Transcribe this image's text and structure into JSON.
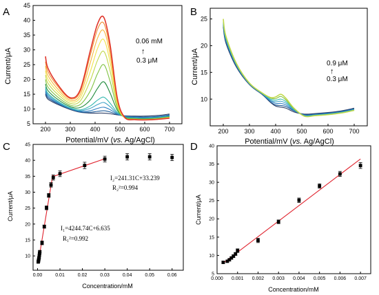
{
  "chart_data": [
    {
      "panel": "A",
      "type": "line",
      "xlabel_main": "Potential/mV (",
      "xlabel_italic": "vs.",
      "xlabel_tail": " Ag/AgCl)",
      "ylabel": "Current/μA",
      "xlim": [
        150,
        750
      ],
      "ylim": [
        5,
        45
      ],
      "xticks": [
        "200",
        "300",
        "400",
        "500",
        "600",
        "700"
      ],
      "yticks": [
        "5",
        "10",
        "15",
        "20",
        "25",
        "30",
        "35",
        "40",
        "45"
      ],
      "legend": {
        "top": "0.06 mM",
        "arrow": "↑",
        "bottom": "0.3 μM",
        "placement": "right"
      },
      "curve_x": [
        200,
        210,
        250,
        300,
        340,
        380,
        410,
        435,
        460,
        490,
        520,
        560,
        600,
        650,
        700
      ],
      "series": [
        {
          "color": "#2c3e66",
          "values": [
            15.0,
            13.3,
            11.5,
            9.8,
            8.9,
            8.6,
            8.6,
            8.6,
            8.4,
            8.0,
            7.7,
            7.6,
            7.6,
            7.8,
            8.3
          ]
        },
        {
          "color": "#1f5c99",
          "values": [
            15.6,
            13.8,
            11.8,
            10.0,
            9.0,
            8.9,
            9.2,
            9.4,
            9.0,
            8.1,
            7.6,
            7.4,
            7.3,
            7.5,
            8.0
          ]
        },
        {
          "color": "#2d7fc1",
          "values": [
            16.2,
            14.3,
            12.0,
            10.1,
            9.2,
            9.4,
            10.2,
            10.6,
            9.8,
            8.3,
            7.5,
            7.2,
            7.1,
            7.3,
            7.8
          ]
        },
        {
          "color": "#3fa4c8",
          "values": [
            16.8,
            14.8,
            12.3,
            10.2,
            9.4,
            10.2,
            11.5,
            12.2,
            10.8,
            8.5,
            7.4,
            7.0,
            6.9,
            7.2,
            7.6
          ]
        },
        {
          "color": "#35b8b0",
          "values": [
            17.4,
            15.3,
            12.6,
            10.4,
            9.7,
            11.0,
            13.0,
            14.0,
            12.0,
            8.8,
            7.3,
            6.9,
            6.8,
            7.0,
            7.5
          ]
        },
        {
          "color": "#1e8a3a",
          "values": [
            18.5,
            16.2,
            13.2,
            10.8,
            10.5,
            13.0,
            17.0,
            19.2,
            15.5,
            9.5,
            7.2,
            6.8,
            6.7,
            6.9,
            7.4
          ]
        },
        {
          "color": "#7fc241",
          "values": [
            20.0,
            17.4,
            14.0,
            11.3,
            11.5,
            16.0,
            22.0,
            25.0,
            19.5,
            10.2,
            7.1,
            6.7,
            6.6,
            6.8,
            7.3
          ]
        },
        {
          "color": "#c0d84a",
          "values": [
            21.5,
            18.7,
            14.9,
            11.9,
            12.7,
            19.5,
            26.5,
            29.5,
            23.0,
            11.0,
            7.0,
            6.6,
            6.5,
            6.7,
            7.2
          ]
        },
        {
          "color": "#f0e34a",
          "values": [
            23.0,
            20.0,
            15.8,
            12.5,
            13.8,
            22.5,
            30.5,
            33.5,
            26.0,
            11.8,
            7.0,
            6.5,
            6.4,
            6.6,
            7.1
          ]
        },
        {
          "color": "#f6b73c",
          "values": [
            24.5,
            21.3,
            16.7,
            13.0,
            14.8,
            25.5,
            34.0,
            36.5,
            28.5,
            12.5,
            7.0,
            6.5,
            6.3,
            6.5,
            7.0
          ]
        },
        {
          "color": "#f08a2e",
          "values": [
            26.0,
            22.6,
            17.6,
            13.5,
            15.8,
            28.0,
            37.0,
            39.0,
            30.5,
            13.0,
            7.0,
            6.4,
            6.3,
            6.5,
            6.9
          ]
        },
        {
          "color": "#e0352b",
          "values": [
            27.8,
            23.8,
            18.2,
            13.8,
            16.5,
            29.5,
            38.8,
            41.0,
            32.0,
            13.5,
            7.1,
            6.4,
            6.3,
            6.5,
            6.9
          ]
        }
      ]
    },
    {
      "panel": "B",
      "type": "line",
      "xlabel_main": "Potential/mV (",
      "xlabel_italic": "vs.",
      "xlabel_tail": " Ag/AgCl)",
      "ylabel": "Current/μA",
      "xlim": [
        150,
        750
      ],
      "ylim": [
        5,
        27
      ],
      "xticks": [
        "200",
        "300",
        "400",
        "500",
        "600",
        "700"
      ],
      "yticks": [
        "10",
        "15",
        "20",
        "25"
      ],
      "legend": {
        "top": "0.9 μM",
        "arrow": "↑",
        "bottom": "0.3 μM",
        "placement": "right"
      },
      "curve_x": [
        200,
        210,
        250,
        300,
        350,
        380,
        400,
        420,
        440,
        470,
        510,
        550,
        600,
        650,
        700
      ],
      "series": [
        {
          "color": "#2c3e66",
          "values": [
            23.5,
            20.5,
            16.0,
            12.7,
            10.8,
            9.4,
            8.7,
            8.5,
            8.3,
            7.6,
            7.2,
            7.3,
            7.5,
            7.8,
            8.3
          ]
        },
        {
          "color": "#1f5c99",
          "values": [
            23.8,
            20.8,
            16.2,
            12.8,
            10.9,
            9.5,
            8.9,
            8.8,
            8.6,
            7.8,
            7.1,
            7.2,
            7.4,
            7.7,
            8.2
          ]
        },
        {
          "color": "#2d7fc1",
          "values": [
            24.0,
            21.0,
            16.3,
            12.8,
            10.9,
            9.7,
            9.2,
            9.2,
            8.9,
            7.9,
            7.0,
            7.1,
            7.3,
            7.6,
            8.1
          ]
        },
        {
          "color": "#3fa4c8",
          "values": [
            24.2,
            21.2,
            16.4,
            12.9,
            11.0,
            9.8,
            9.5,
            9.6,
            9.2,
            8.0,
            6.9,
            7.0,
            7.2,
            7.5,
            8.0
          ]
        },
        {
          "color": "#35b8b0",
          "values": [
            24.4,
            21.4,
            16.5,
            12.9,
            11.0,
            10.0,
            9.8,
            10.0,
            9.5,
            8.1,
            6.9,
            7.0,
            7.2,
            7.5,
            8.0
          ]
        },
        {
          "color": "#7fc241",
          "values": [
            24.7,
            21.6,
            16.6,
            13.0,
            11.1,
            10.2,
            10.1,
            10.5,
            9.8,
            8.2,
            6.8,
            6.9,
            7.1,
            7.4,
            7.9
          ]
        },
        {
          "color": "#c0d84a",
          "values": [
            25.0,
            21.8,
            16.7,
            13.0,
            11.1,
            10.3,
            10.4,
            10.9,
            10.1,
            8.3,
            6.8,
            6.9,
            7.1,
            7.4,
            7.9
          ]
        }
      ]
    },
    {
      "panel": "C",
      "type": "scatter",
      "xlabel": "Concentration/mM",
      "ylabel": "Current/μA",
      "xlim": [
        -0.002,
        0.065
      ],
      "ylim": [
        5.5,
        45
      ],
      "xticks": [
        "0.00",
        "0.01",
        "0.02",
        "0.03",
        "0.04",
        "0.05",
        "0.06"
      ],
      "yticks": [
        "10",
        "15",
        "20",
        "25",
        "30",
        "35",
        "40",
        "45"
      ],
      "x": [
        0.0003,
        0.0004,
        0.0005,
        0.0006,
        0.0007,
        0.0008,
        0.0009,
        0.001,
        0.002,
        0.003,
        0.004,
        0.005,
        0.006,
        0.007,
        0.01,
        0.021,
        0.03,
        0.04,
        0.05,
        0.06
      ],
      "y": [
        8.1,
        8.4,
        8.8,
        9.2,
        9.6,
        10.2,
        10.8,
        11.3,
        14.1,
        19.2,
        25.1,
        29.0,
        32.3,
        34.6,
        35.8,
        38.4,
        40.4,
        41.1,
        41.1,
        40.9
      ],
      "error": [
        0.3,
        0.3,
        0.3,
        0.3,
        0.3,
        0.3,
        0.4,
        0.4,
        0.6,
        0.5,
        0.6,
        0.6,
        0.7,
        0.8,
        0.9,
        1.0,
        0.9,
        1.0,
        1.0,
        1.0
      ],
      "fit_line_1": [
        [
          0.0003,
          7.9
        ],
        [
          0.0068,
          35.5
        ]
      ],
      "fit_line_2": [
        [
          0.0068,
          34.9
        ],
        [
          0.03,
          40.5
        ]
      ],
      "equation_1": "I₁=4244.74C+6.635",
      "r2_1": "R₁²=0.992",
      "equation_2": "I₂=241.31C+33.239",
      "r2_2": "R₂²=0.994"
    },
    {
      "panel": "D",
      "type": "scatter",
      "xlabel": "Concentration/mM",
      "ylabel": "Current/μA",
      "xlim": [
        0,
        0.0075
      ],
      "ylim": [
        5,
        40
      ],
      "xticks": [
        "0.000",
        "0.001",
        "0.002",
        "0.003",
        "0.004",
        "0.005",
        "0.006",
        "0.007"
      ],
      "yticks": [
        "5",
        "10",
        "15",
        "20",
        "25",
        "30",
        "35",
        "40"
      ],
      "x": [
        0.0003,
        0.0005,
        0.0006,
        0.0007,
        0.0008,
        0.0009,
        0.001,
        0.002,
        0.003,
        0.004,
        0.005,
        0.006,
        0.007
      ],
      "y": [
        8.1,
        8.4,
        8.8,
        9.3,
        9.8,
        10.4,
        11.3,
        14.1,
        19.2,
        25.1,
        29.0,
        32.3,
        34.6
      ],
      "error": [
        0.3,
        0.3,
        0.3,
        0.3,
        0.4,
        0.4,
        0.5,
        0.6,
        0.5,
        0.6,
        0.6,
        0.7,
        0.8
      ],
      "fit_line": [
        [
          0.0003,
          7.9
        ],
        [
          0.007,
          36.4
        ]
      ]
    }
  ]
}
